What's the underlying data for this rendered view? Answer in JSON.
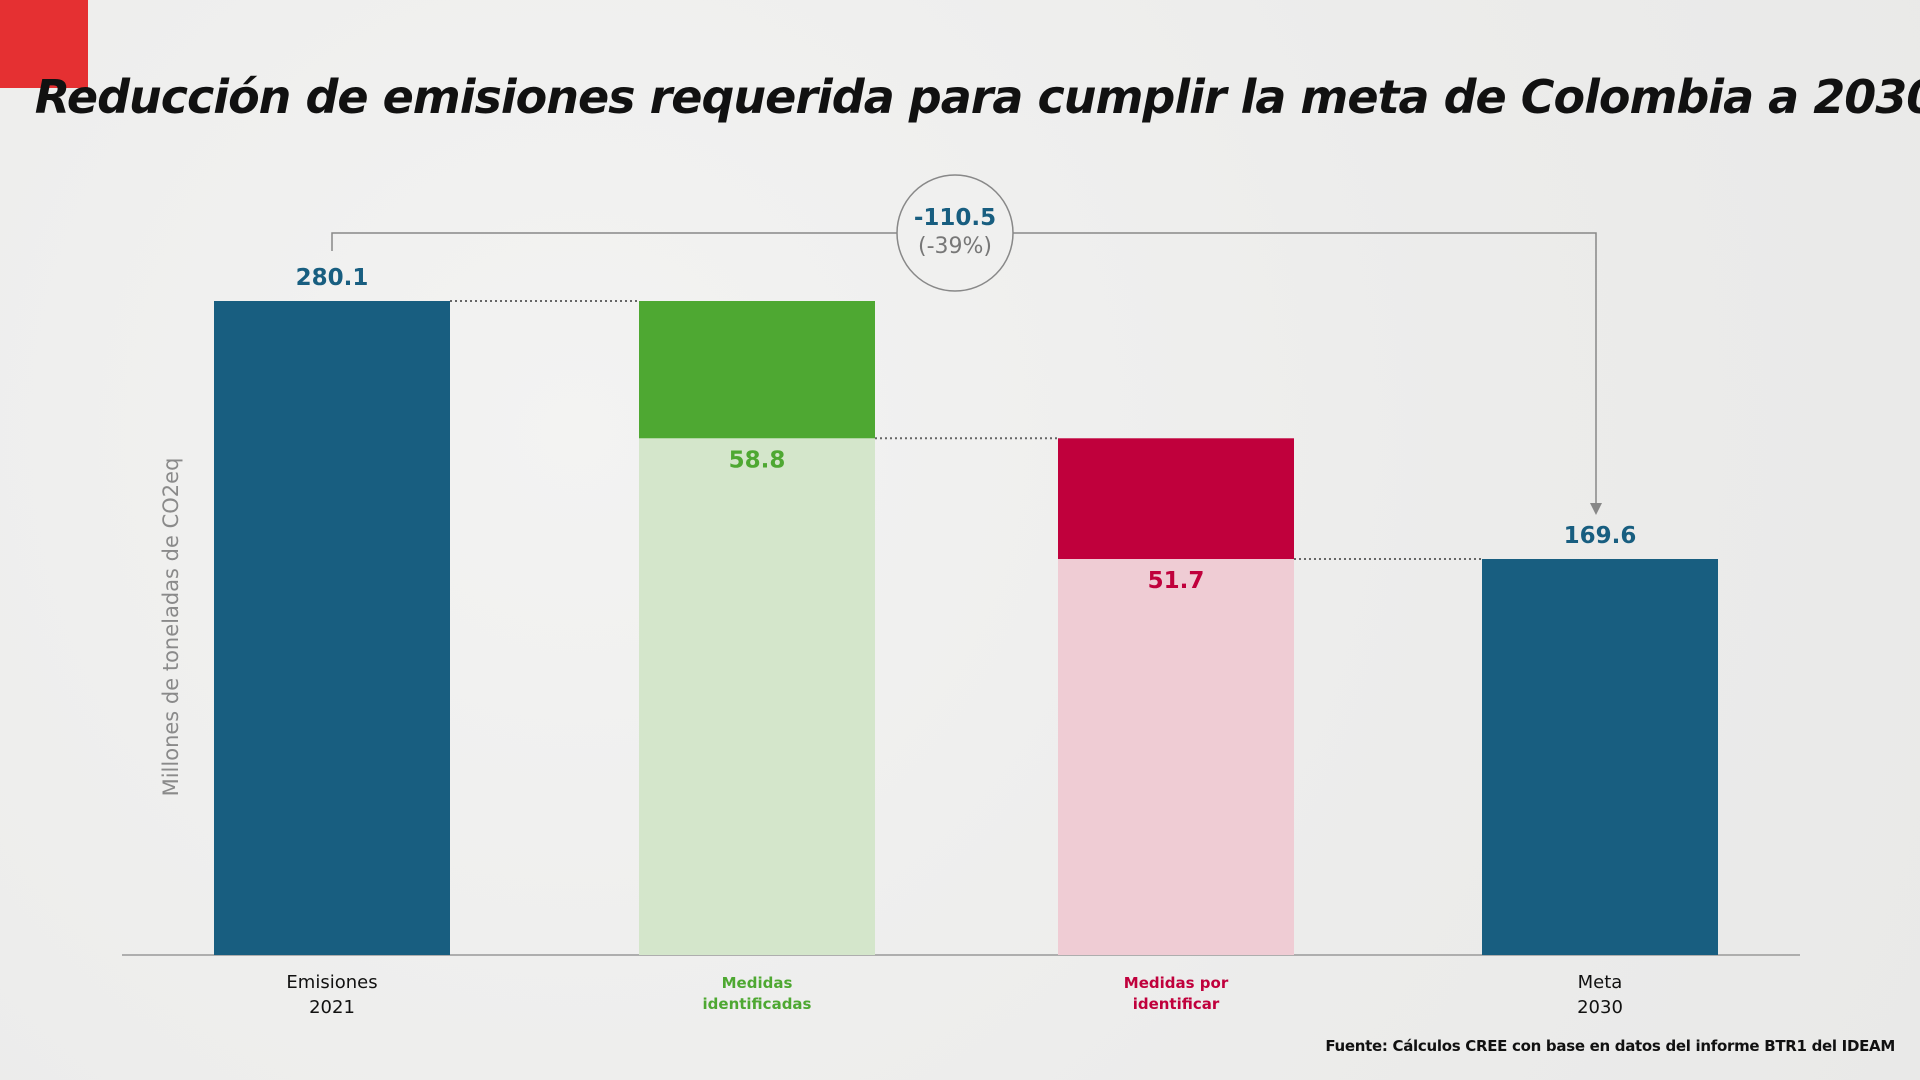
{
  "title": "Reducción de emisiones requerida para cumplir la meta de Colombia a 2030",
  "source": "Fuente: Cálculos CREE con base en datos del informe BTR1 del IDEAM",
  "chart_data": {
    "type": "waterfall",
    "title": "Reducción de emisiones requerida para cumplir la meta de Colombia a 2030",
    "ylabel": "Millones de toneladas de CO2eq",
    "ylim": [
      0,
      280.1
    ],
    "grid": false,
    "categories": [
      {
        "line1": "Emisiones",
        "line2": "2021"
      },
      {
        "line1": "Medidas",
        "line2": "identificadas"
      },
      {
        "line1": "Medidas por",
        "line2": "identificar"
      },
      {
        "line1": "Meta",
        "line2": "2030"
      }
    ],
    "bars": [
      {
        "kind": "total",
        "value": 280.1,
        "label": "280.1",
        "color": "#185e80",
        "label_color": "#185e80"
      },
      {
        "kind": "decrease",
        "value": 58.8,
        "label": "58.8",
        "color": "#4ea832",
        "fill_color": "#d4e6cb",
        "label_color": "#4ea832"
      },
      {
        "kind": "decrease",
        "value": 51.7,
        "label": "51.7",
        "color": "#c0003c",
        "fill_color": "#efccd4",
        "label_color": "#c0003c"
      },
      {
        "kind": "total",
        "value": 169.6,
        "label": "169.6",
        "color": "#185e80",
        "label_color": "#185e80"
      }
    ],
    "annotation": {
      "value": "-110.5",
      "percent": "(-39%)"
    }
  },
  "colors": {
    "accent": "#e53032",
    "blue": "#185e80",
    "green": "#4ea832",
    "red": "#c0003c"
  }
}
